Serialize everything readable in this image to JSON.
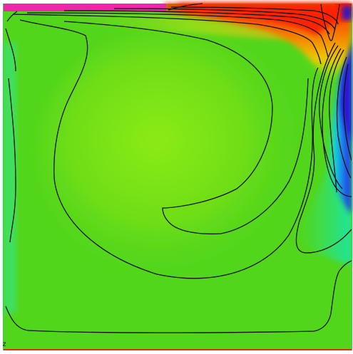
{
  "corner_label": "z",
  "colors": {
    "background": "#ffffff",
    "field_base": "#52d61c",
    "field_core": "#86ea12",
    "top_strip": "#ee26a8",
    "hot_orange": "#f26a00",
    "hot_red": "#ff2500",
    "hot_yellow": "#f0e800",
    "cold_blue": "#2a1ad8",
    "cold_mid": "#1e8cf0",
    "cold_cyan": "#16e6c4",
    "cyan_green": "#20e890",
    "contour_line": "#111111",
    "bottom_line": "#e03000"
  }
}
